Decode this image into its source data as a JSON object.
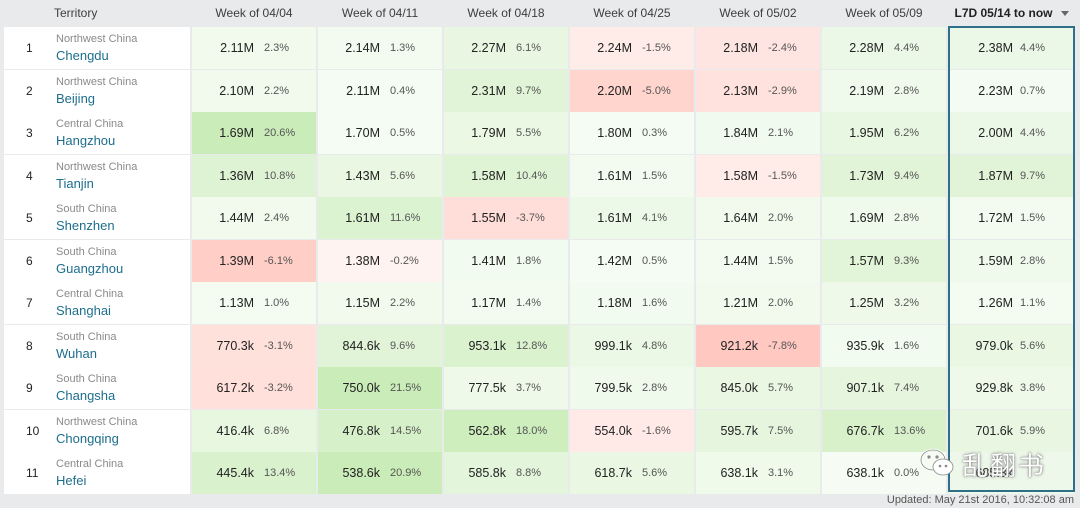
{
  "header": {
    "territory": "Territory",
    "weeks": [
      "Week of 04/04",
      "Week of 04/11",
      "Week of 04/18",
      "Week of 04/25",
      "Week of 05/02",
      "Week of 05/09"
    ],
    "l7d": "L7D 05/14 to now",
    "sort_icon": "sort-down-icon"
  },
  "rows": [
    {
      "rank": "1",
      "region": "Northwest China",
      "city": "Chengdu",
      "cells": [
        {
          "v": "2.11M",
          "p": "2.3%"
        },
        {
          "v": "2.14M",
          "p": "1.3%"
        },
        {
          "v": "2.27M",
          "p": "6.1%"
        },
        {
          "v": "2.24M",
          "p": "-1.5%"
        },
        {
          "v": "2.18M",
          "p": "-2.4%"
        },
        {
          "v": "2.28M",
          "p": "4.4%"
        },
        {
          "v": "2.38M",
          "p": "4.4%"
        }
      ]
    },
    {
      "rank": "2",
      "region": "Northwest China",
      "city": "Beijing",
      "cells": [
        {
          "v": "2.10M",
          "p": "2.2%"
        },
        {
          "v": "2.11M",
          "p": "0.4%"
        },
        {
          "v": "2.31M",
          "p": "9.7%"
        },
        {
          "v": "2.20M",
          "p": "-5.0%"
        },
        {
          "v": "2.13M",
          "p": "-2.9%"
        },
        {
          "v": "2.19M",
          "p": "2.8%"
        },
        {
          "v": "2.23M",
          "p": "0.7%"
        }
      ]
    },
    {
      "rank": "3",
      "region": "Central China",
      "city": "Hangzhou",
      "cells": [
        {
          "v": "1.69M",
          "p": "20.6%"
        },
        {
          "v": "1.70M",
          "p": "0.5%"
        },
        {
          "v": "1.79M",
          "p": "5.5%"
        },
        {
          "v": "1.80M",
          "p": "0.3%"
        },
        {
          "v": "1.84M",
          "p": "2.1%"
        },
        {
          "v": "1.95M",
          "p": "6.2%"
        },
        {
          "v": "2.00M",
          "p": "4.4%"
        }
      ]
    },
    {
      "rank": "4",
      "region": "Northwest China",
      "city": "Tianjin",
      "cells": [
        {
          "v": "1.36M",
          "p": "10.8%"
        },
        {
          "v": "1.43M",
          "p": "5.6%"
        },
        {
          "v": "1.58M",
          "p": "10.4%"
        },
        {
          "v": "1.61M",
          "p": "1.5%"
        },
        {
          "v": "1.58M",
          "p": "-1.5%"
        },
        {
          "v": "1.73M",
          "p": "9.4%"
        },
        {
          "v": "1.87M",
          "p": "9.7%"
        }
      ]
    },
    {
      "rank": "5",
      "region": "South China",
      "city": "Shenzhen",
      "cells": [
        {
          "v": "1.44M",
          "p": "2.4%"
        },
        {
          "v": "1.61M",
          "p": "11.6%"
        },
        {
          "v": "1.55M",
          "p": "-3.7%"
        },
        {
          "v": "1.61M",
          "p": "4.1%"
        },
        {
          "v": "1.64M",
          "p": "2.0%"
        },
        {
          "v": "1.69M",
          "p": "2.8%"
        },
        {
          "v": "1.72M",
          "p": "1.5%"
        }
      ]
    },
    {
      "rank": "6",
      "region": "South China",
      "city": "Guangzhou",
      "cells": [
        {
          "v": "1.39M",
          "p": "-6.1%"
        },
        {
          "v": "1.38M",
          "p": "-0.2%"
        },
        {
          "v": "1.41M",
          "p": "1.8%"
        },
        {
          "v": "1.42M",
          "p": "0.5%"
        },
        {
          "v": "1.44M",
          "p": "1.5%"
        },
        {
          "v": "1.57M",
          "p": "9.3%"
        },
        {
          "v": "1.59M",
          "p": "2.8%"
        }
      ]
    },
    {
      "rank": "7",
      "region": "Central China",
      "city": "Shanghai",
      "cells": [
        {
          "v": "1.13M",
          "p": "1.0%"
        },
        {
          "v": "1.15M",
          "p": "2.2%"
        },
        {
          "v": "1.17M",
          "p": "1.4%"
        },
        {
          "v": "1.18M",
          "p": "1.6%"
        },
        {
          "v": "1.21M",
          "p": "2.0%"
        },
        {
          "v": "1.25M",
          "p": "3.2%"
        },
        {
          "v": "1.26M",
          "p": "1.1%"
        }
      ]
    },
    {
      "rank": "8",
      "region": "South China",
      "city": "Wuhan",
      "cells": [
        {
          "v": "770.3k",
          "p": "-3.1%"
        },
        {
          "v": "844.6k",
          "p": "9.6%"
        },
        {
          "v": "953.1k",
          "p": "12.8%"
        },
        {
          "v": "999.1k",
          "p": "4.8%"
        },
        {
          "v": "921.2k",
          "p": "-7.8%"
        },
        {
          "v": "935.9k",
          "p": "1.6%"
        },
        {
          "v": "979.0k",
          "p": "5.6%"
        }
      ]
    },
    {
      "rank": "9",
      "region": "South China",
      "city": "Changsha",
      "cells": [
        {
          "v": "617.2k",
          "p": "-3.2%"
        },
        {
          "v": "750.0k",
          "p": "21.5%"
        },
        {
          "v": "777.5k",
          "p": "3.7%"
        },
        {
          "v": "799.5k",
          "p": "2.8%"
        },
        {
          "v": "845.0k",
          "p": "5.7%"
        },
        {
          "v": "907.1k",
          "p": "7.4%"
        },
        {
          "v": "929.8k",
          "p": "3.8%"
        }
      ]
    },
    {
      "rank": "10",
      "region": "Northwest China",
      "city": "Chongqing",
      "cells": [
        {
          "v": "416.4k",
          "p": "6.8%"
        },
        {
          "v": "476.8k",
          "p": "14.5%"
        },
        {
          "v": "562.8k",
          "p": "18.0%"
        },
        {
          "v": "554.0k",
          "p": "-1.6%"
        },
        {
          "v": "595.7k",
          "p": "7.5%"
        },
        {
          "v": "676.7k",
          "p": "13.6%"
        },
        {
          "v": "701.6k",
          "p": "5.9%"
        }
      ]
    },
    {
      "rank": "11",
      "region": "Central China",
      "city": "Hefei",
      "cells": [
        {
          "v": "445.4k",
          "p": "13.4%"
        },
        {
          "v": "538.6k",
          "p": "20.9%"
        },
        {
          "v": "585.8k",
          "p": "8.8%"
        },
        {
          "v": "618.7k",
          "p": "5.6%"
        },
        {
          "v": "638.1k",
          "p": "3.1%"
        },
        {
          "v": "638.1k",
          "p": "0.0%"
        },
        {
          "v": "685.3k",
          "p": ""
        }
      ]
    }
  ],
  "footer": {
    "updated": "Updated: May 21st 2016, 10:32:08 am"
  },
  "watermark": {
    "text": "乱翻书",
    "icon": "wechat-icon"
  },
  "colors": {
    "positive": "#3cb043",
    "negative": "#f06a5a",
    "l7d_border": "#2e6f8a",
    "city_link": "#1d6e8e"
  }
}
